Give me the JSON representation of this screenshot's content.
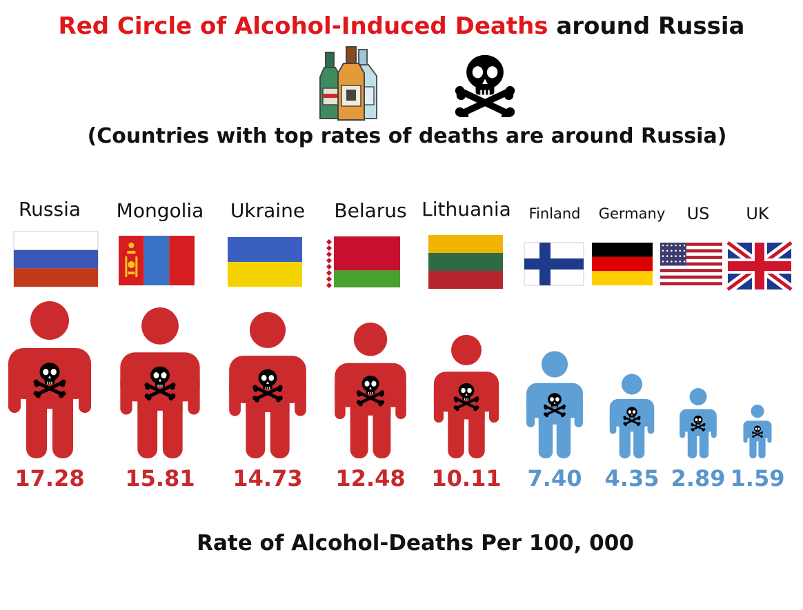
{
  "title": {
    "highlight": "Red Circle of Alcohol-Induced Deaths",
    "rest": " around Russia"
  },
  "subtitle": "(Countries with top rates of deaths are around Russia)",
  "footer": "Rate of Alcohol-Deaths Per 100, 000",
  "icons": {
    "bottles": "liquor-bottles-icon",
    "skull": "skull-crossbones-icon"
  },
  "colors": {
    "high": "#cc2b2e",
    "low": "#5e9fd6",
    "value_high": "#c8282c",
    "value_low": "#5a95cc",
    "title_highlight": "#e0161b"
  },
  "chart_data": {
    "type": "pictograph",
    "xlabel": "Rate of Alcohol-Deaths Per 100, 000",
    "categories": [
      "Russia",
      "Mongolia",
      "Ukraine",
      "Belarus",
      "Lithuania",
      "Finland",
      "Germany",
      "US",
      "UK"
    ],
    "values": [
      17.28,
      15.81,
      14.73,
      12.48,
      10.11,
      7.4,
      4.35,
      2.89,
      1.59
    ],
    "value_labels": [
      "17.28",
      "15.81",
      "14.73",
      "12.48",
      "10.11",
      "7.40",
      "4.35",
      "2.89",
      "1.59"
    ],
    "color_groups": [
      "high",
      "high",
      "high",
      "high",
      "high",
      "low",
      "low",
      "low",
      "low"
    ]
  }
}
